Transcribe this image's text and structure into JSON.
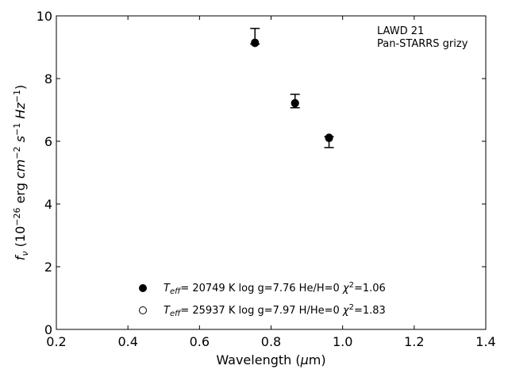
{
  "chart_data": {
    "type": "scatter",
    "xlabel_parts": [
      "Wavelength (",
      "μ",
      "m)"
    ],
    "ylabel_parts": [
      "f",
      "ν",
      " (10",
      "−26",
      " erg ",
      "cm",
      "−2",
      " ",
      "s",
      "−1",
      " ",
      "Hz",
      "−1",
      ")"
    ],
    "xlim": [
      0.2,
      1.4
    ],
    "ylim": [
      0,
      10
    ],
    "xticks": [
      "0.2",
      "0.4",
      "0.6",
      "0.8",
      "1.0",
      "1.2",
      "1.4"
    ],
    "yticks": [
      "0",
      "2",
      "4",
      "6",
      "8",
      "10"
    ],
    "annotation": [
      "LAWD 21",
      "Pan-STARRS grizy"
    ],
    "observed": {
      "x": [
        0.755,
        0.867,
        0.962
      ],
      "y": [
        9.33,
        7.27,
        6.05
      ],
      "yerr_low": [
        0.23,
        0.2,
        0.25
      ],
      "yerr_high": [
        0.27,
        0.23,
        0.1
      ]
    },
    "series": [
      {
        "marker": "filled",
        "label_parts": [
          "T",
          "eff",
          "= 20749 K  log g=7.76  He/H=0  ",
          "χ",
          "2",
          "=1.06"
        ],
        "x": [
          0.755,
          0.867,
          0.962
        ],
        "y": [
          9.15,
          7.22,
          6.12
        ]
      },
      {
        "marker": "open",
        "label_parts": [
          "T",
          "eff",
          "= 25937 K  log g=7.97  H/He=0  ",
          "χ",
          "2",
          "=1.83"
        ],
        "x": [
          0.755,
          0.867,
          0.962
        ],
        "y": [
          9.13,
          7.21,
          6.1
        ]
      }
    ]
  }
}
